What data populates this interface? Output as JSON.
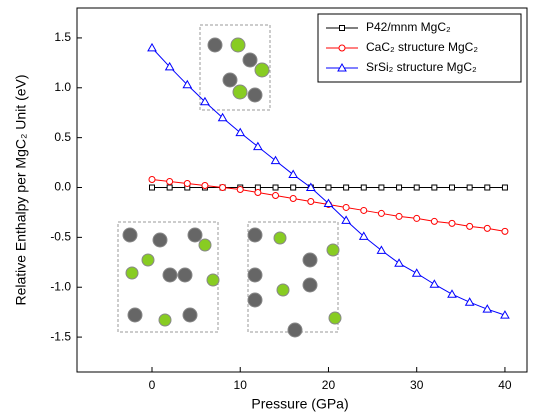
{
  "chart_data": {
    "type": "line",
    "x_label": "Pressure (GPa)",
    "y_label": "Relative Enthalpy per MgC₂ Unit (eV)",
    "x": [
      0,
      2,
      4,
      6,
      8,
      10,
      12,
      14,
      16,
      18,
      20,
      22,
      24,
      26,
      28,
      30,
      32,
      34,
      36,
      38,
      40
    ],
    "series": [
      {
        "name": "P42/mnm MgC₂",
        "color": "#000000",
        "marker": "square",
        "values": [
          0,
          0,
          0,
          0,
          0,
          0,
          0,
          0,
          0,
          0,
          0,
          0,
          0,
          0,
          0,
          0,
          0,
          0,
          0,
          0,
          0
        ]
      },
      {
        "name": "CaC₂ structure MgC₂",
        "color": "#ff0000",
        "marker": "circle",
        "values": [
          0.08,
          0.06,
          0.04,
          0.02,
          0.0,
          -0.02,
          -0.05,
          -0.08,
          -0.11,
          -0.14,
          -0.17,
          -0.2,
          -0.23,
          -0.26,
          -0.29,
          -0.31,
          -0.34,
          -0.36,
          -0.39,
          -0.41,
          -0.44
        ]
      },
      {
        "name": "SrSi₂ structure MgC₂",
        "color": "#0000ff",
        "marker": "triangle",
        "values": [
          1.4,
          1.21,
          1.03,
          0.86,
          0.7,
          0.55,
          0.41,
          0.27,
          0.13,
          0.0,
          -0.16,
          -0.33,
          -0.49,
          -0.63,
          -0.76,
          -0.86,
          -0.97,
          -1.07,
          -1.15,
          -1.22,
          -1.28
        ]
      }
    ],
    "xlim": [
      -8.5,
      42.5
    ],
    "ylim": [
      -1.85,
      1.8
    ],
    "xticks": [
      0,
      10,
      20,
      30,
      40
    ],
    "yticks": [
      1.5,
      {
        "value": 1.0,
        "label": "1.0"
      },
      0.5,
      {
        "value": 0.0,
        "label": "0.0"
      },
      -0.5,
      {
        "value": -1.0,
        "label": "-1.0"
      },
      -1.5
    ],
    "legend": "upper right"
  }
}
